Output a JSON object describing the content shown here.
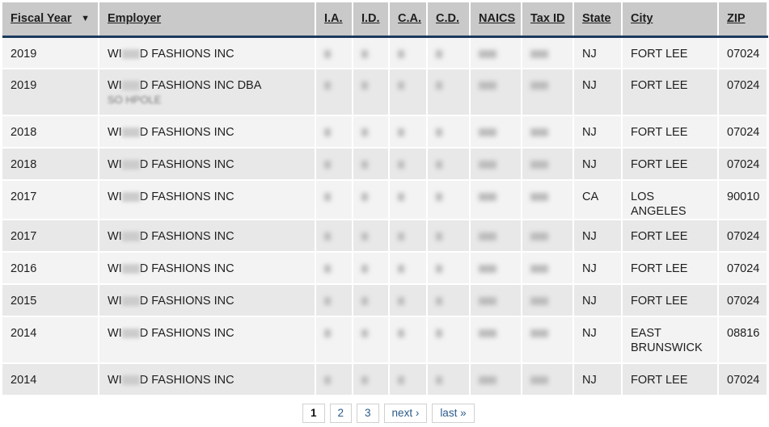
{
  "columns": [
    "Fiscal Year",
    "Employer",
    "I.A.",
    "I.D.",
    "C.A.",
    "C.D.",
    "NAICS",
    "Tax ID",
    "State",
    "City",
    "ZIP"
  ],
  "rows": [
    {
      "year": "2019",
      "emp_pre": "WI",
      "emp_post": "D FASHIONS INC",
      "emp_line2": "",
      "state": "NJ",
      "city": "FORT LEE",
      "zip": "07024"
    },
    {
      "year": "2019",
      "emp_pre": "WI",
      "emp_post": "D FASHIONS INC DBA",
      "emp_line2": "SO  HPOLE",
      "state": "NJ",
      "city": "FORT LEE",
      "zip": "07024"
    },
    {
      "year": "2018",
      "emp_pre": "WI",
      "emp_post": "D FASHIONS INC",
      "emp_line2": "",
      "state": "NJ",
      "city": "FORT LEE",
      "zip": "07024"
    },
    {
      "year": "2018",
      "emp_pre": "WI",
      "emp_post": "D FASHIONS INC",
      "emp_line2": "",
      "state": "NJ",
      "city": "FORT LEE",
      "zip": "07024"
    },
    {
      "year": "2017",
      "emp_pre": "WI",
      "emp_post": "D FASHIONS INC",
      "emp_line2": "",
      "state": "CA",
      "city": "LOS ANGELES",
      "zip": "90010"
    },
    {
      "year": "2017",
      "emp_pre": "WI",
      "emp_post": "D FASHIONS INC",
      "emp_line2": "",
      "state": "NJ",
      "city": "FORT LEE",
      "zip": "07024"
    },
    {
      "year": "2016",
      "emp_pre": "WI",
      "emp_post": "D FASHIONS INC",
      "emp_line2": "",
      "state": "NJ",
      "city": "FORT LEE",
      "zip": "07024"
    },
    {
      "year": "2015",
      "emp_pre": "WI",
      "emp_post": "D FASHIONS INC",
      "emp_line2": "",
      "state": "NJ",
      "city": "FORT LEE",
      "zip": "07024"
    },
    {
      "year": "2014",
      "emp_pre": "WI",
      "emp_post": "D FASHIONS INC",
      "emp_line2": "",
      "state": "NJ",
      "city": "EAST BRUNSWICK",
      "zip": "08816"
    },
    {
      "year": "2014",
      "emp_pre": "WI",
      "emp_post": "D FASHIONS INC",
      "emp_line2": "",
      "state": "NJ",
      "city": "FORT LEE",
      "zip": "07024"
    }
  ],
  "pager": {
    "pages": [
      "1",
      "2",
      "3"
    ],
    "current": "1",
    "next": "next ›",
    "last": "last »"
  }
}
